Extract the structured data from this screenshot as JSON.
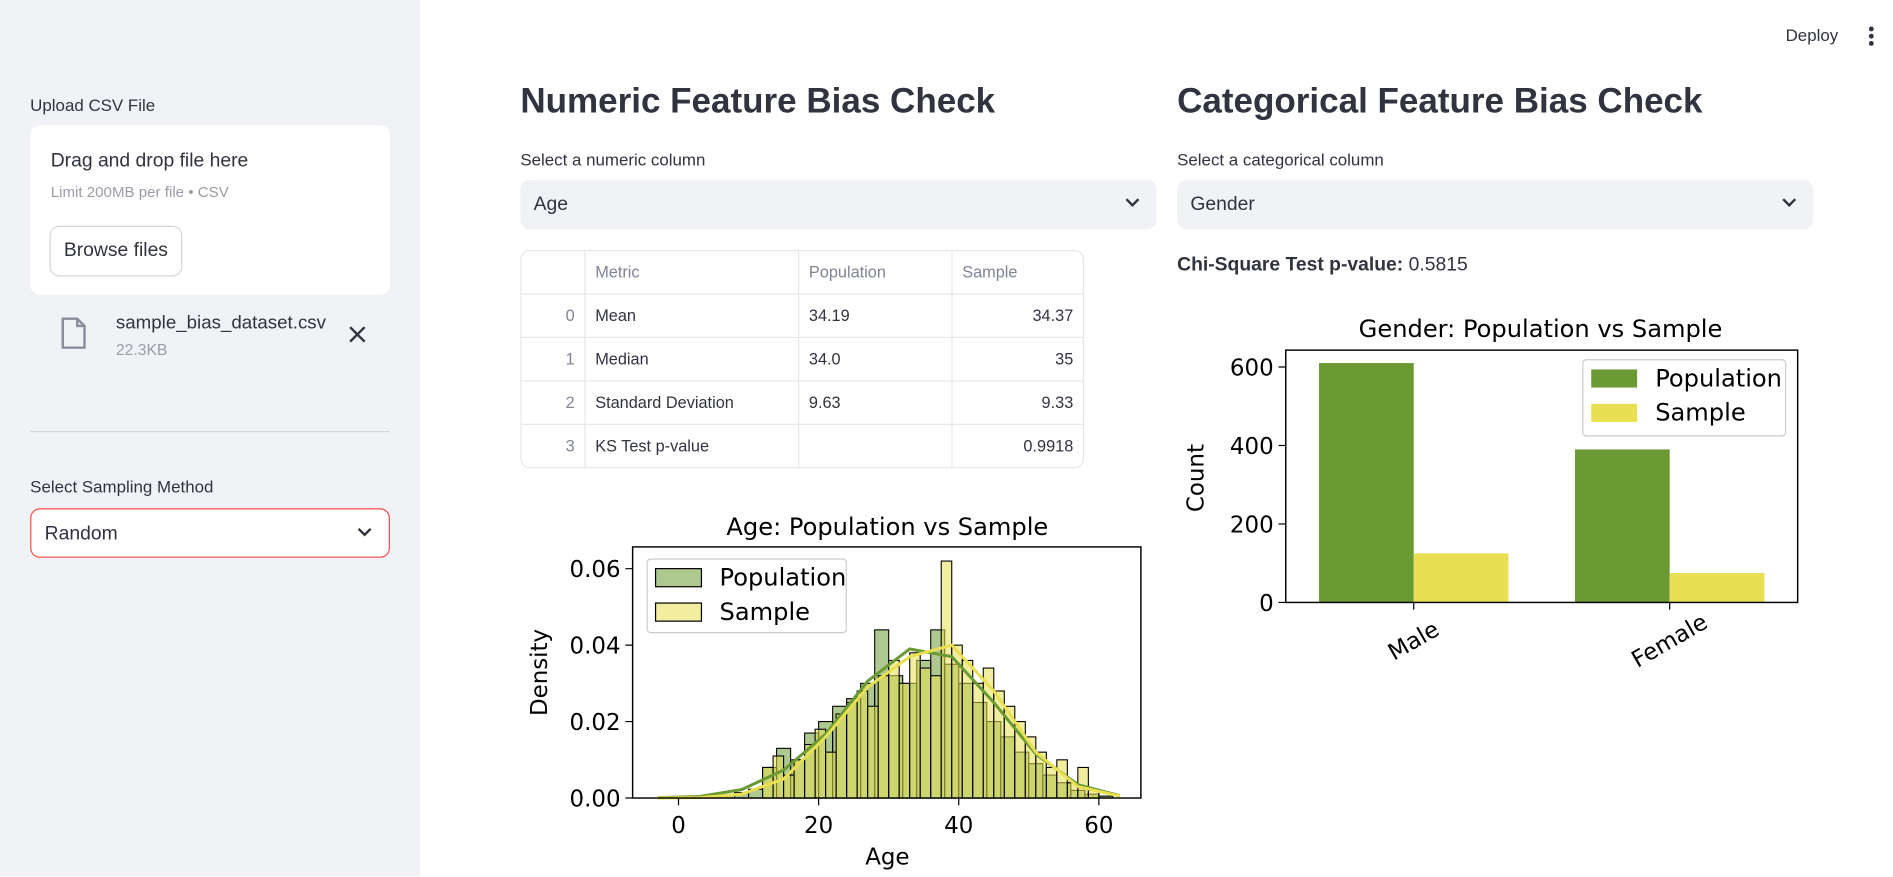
{
  "header": {
    "deploy": "Deploy"
  },
  "sidebar": {
    "upload_label": "Upload CSV File",
    "dropzone_title": "Drag and drop file here",
    "dropzone_hint": "Limit 200MB per file • CSV",
    "browse_button": "Browse files",
    "file_name": "sample_bias_dataset.csv",
    "file_size": "22.3KB",
    "sampling_label": "Select Sampling Method",
    "sampling_value": "Random"
  },
  "numeric": {
    "title": "Numeric Feature Bias Check",
    "select_label": "Select a numeric column",
    "select_value": "Age",
    "table": {
      "columns": [
        "Metric",
        "Population",
        "Sample"
      ],
      "rows": [
        [
          "0",
          "Mean",
          "34.19",
          "34.37"
        ],
        [
          "1",
          "Median",
          "34.0",
          "35"
        ],
        [
          "2",
          "Standard Deviation",
          "9.63",
          "9.33"
        ],
        [
          "3",
          "KS Test p-value",
          null,
          "0.9918"
        ]
      ]
    }
  },
  "categorical": {
    "title": "Categorical Feature Bias Check",
    "select_label": "Select a categorical column",
    "select_value": "Gender",
    "test_label": "Chi-Square Test p-value:",
    "test_value": "0.5815"
  },
  "chart_data": [
    {
      "type": "histogram",
      "title": "Age: Population vs Sample",
      "x_label": "Age",
      "y_label": "Density",
      "xlim": [
        -6.55,
        66.0
      ],
      "ylim": [
        0,
        0.0657
      ],
      "xticks": [
        0,
        20,
        40,
        60
      ],
      "yticks": [
        {
          "value": 0,
          "label": "0.00"
        },
        {
          "value": 0.02,
          "label": "0.02"
        },
        {
          "value": 0.04,
          "label": "0.04"
        },
        {
          "value": 0.06,
          "label": "0.06"
        }
      ],
      "legend": "upper left",
      "series": [
        {
          "name": "Population",
          "color": "#6b9a34",
          "bins": [
            4,
            6,
            8,
            10,
            12,
            14,
            16,
            18,
            20,
            22,
            24,
            26,
            28,
            30,
            32,
            34,
            36,
            38,
            40,
            42,
            44,
            46,
            48,
            50,
            52,
            54,
            56,
            58,
            60,
            62
          ],
          "values": [
            0.0004,
            0.0008,
            0.0014,
            0.0023,
            0.008,
            0.013,
            0.01,
            0.017,
            0.02,
            0.024,
            0.026,
            0.03,
            0.044,
            0.032,
            0.03,
            0.036,
            0.044,
            0.035,
            0.03,
            0.025,
            0.02,
            0.016,
            0.012,
            0.009,
            0.006,
            0.004,
            0.002,
            0.001,
            0.0005
          ],
          "kde_x": [
            -3,
            3,
            9,
            15,
            21,
            27,
            33,
            39,
            45,
            51,
            57,
            63
          ],
          "kde": [
            0.0001,
            0.0004,
            0.0022,
            0.0073,
            0.0167,
            0.0306,
            0.039,
            0.037,
            0.025,
            0.0115,
            0.0035,
            0.0006
          ]
        },
        {
          "name": "Sample",
          "color": "#e8e052",
          "bins": [
            12,
            13.5,
            15,
            16.5,
            18,
            19.5,
            21,
            22.5,
            24,
            25.5,
            27,
            28.5,
            30,
            31.5,
            33,
            34.5,
            36,
            37.5,
            39,
            40.5,
            42,
            43.5,
            45,
            46.5,
            48,
            49.5,
            51,
            52.5,
            54,
            55.5,
            57,
            58.5,
            60
          ],
          "values": [
            0.008,
            0.011,
            0.006,
            0.01,
            0.014,
            0.018,
            0.012,
            0.022,
            0.025,
            0.028,
            0.024,
            0.032,
            0.036,
            0.03,
            0.038,
            0.034,
            0.032,
            0.062,
            0.04,
            0.036,
            0.03,
            0.034,
            0.028,
            0.024,
            0.02,
            0.016,
            0.012,
            0.008,
            0.01,
            0.004,
            0.008,
            0.002
          ],
          "kde_x": [
            -3,
            3,
            9,
            15,
            21,
            27,
            33,
            39,
            45,
            51,
            57,
            63
          ],
          "kde": [
            0,
            0.0001,
            0.001,
            0.005,
            0.016,
            0.029,
            0.037,
            0.04,
            0.028,
            0.012,
            0.003,
            0.0005
          ]
        }
      ]
    },
    {
      "type": "bar",
      "title": "Gender: Population vs Sample",
      "y_label": "Count",
      "categories": [
        "Male",
        "Female"
      ],
      "ylim": [
        0,
        643
      ],
      "yticks": [
        0,
        200,
        400,
        600
      ],
      "legend": "upper right",
      "series": [
        {
          "name": "Population",
          "color": "#6b9a34",
          "values": [
            610,
            390
          ]
        },
        {
          "name": "Sample",
          "color": "#e8e052",
          "values": [
            125,
            75
          ]
        }
      ]
    }
  ]
}
